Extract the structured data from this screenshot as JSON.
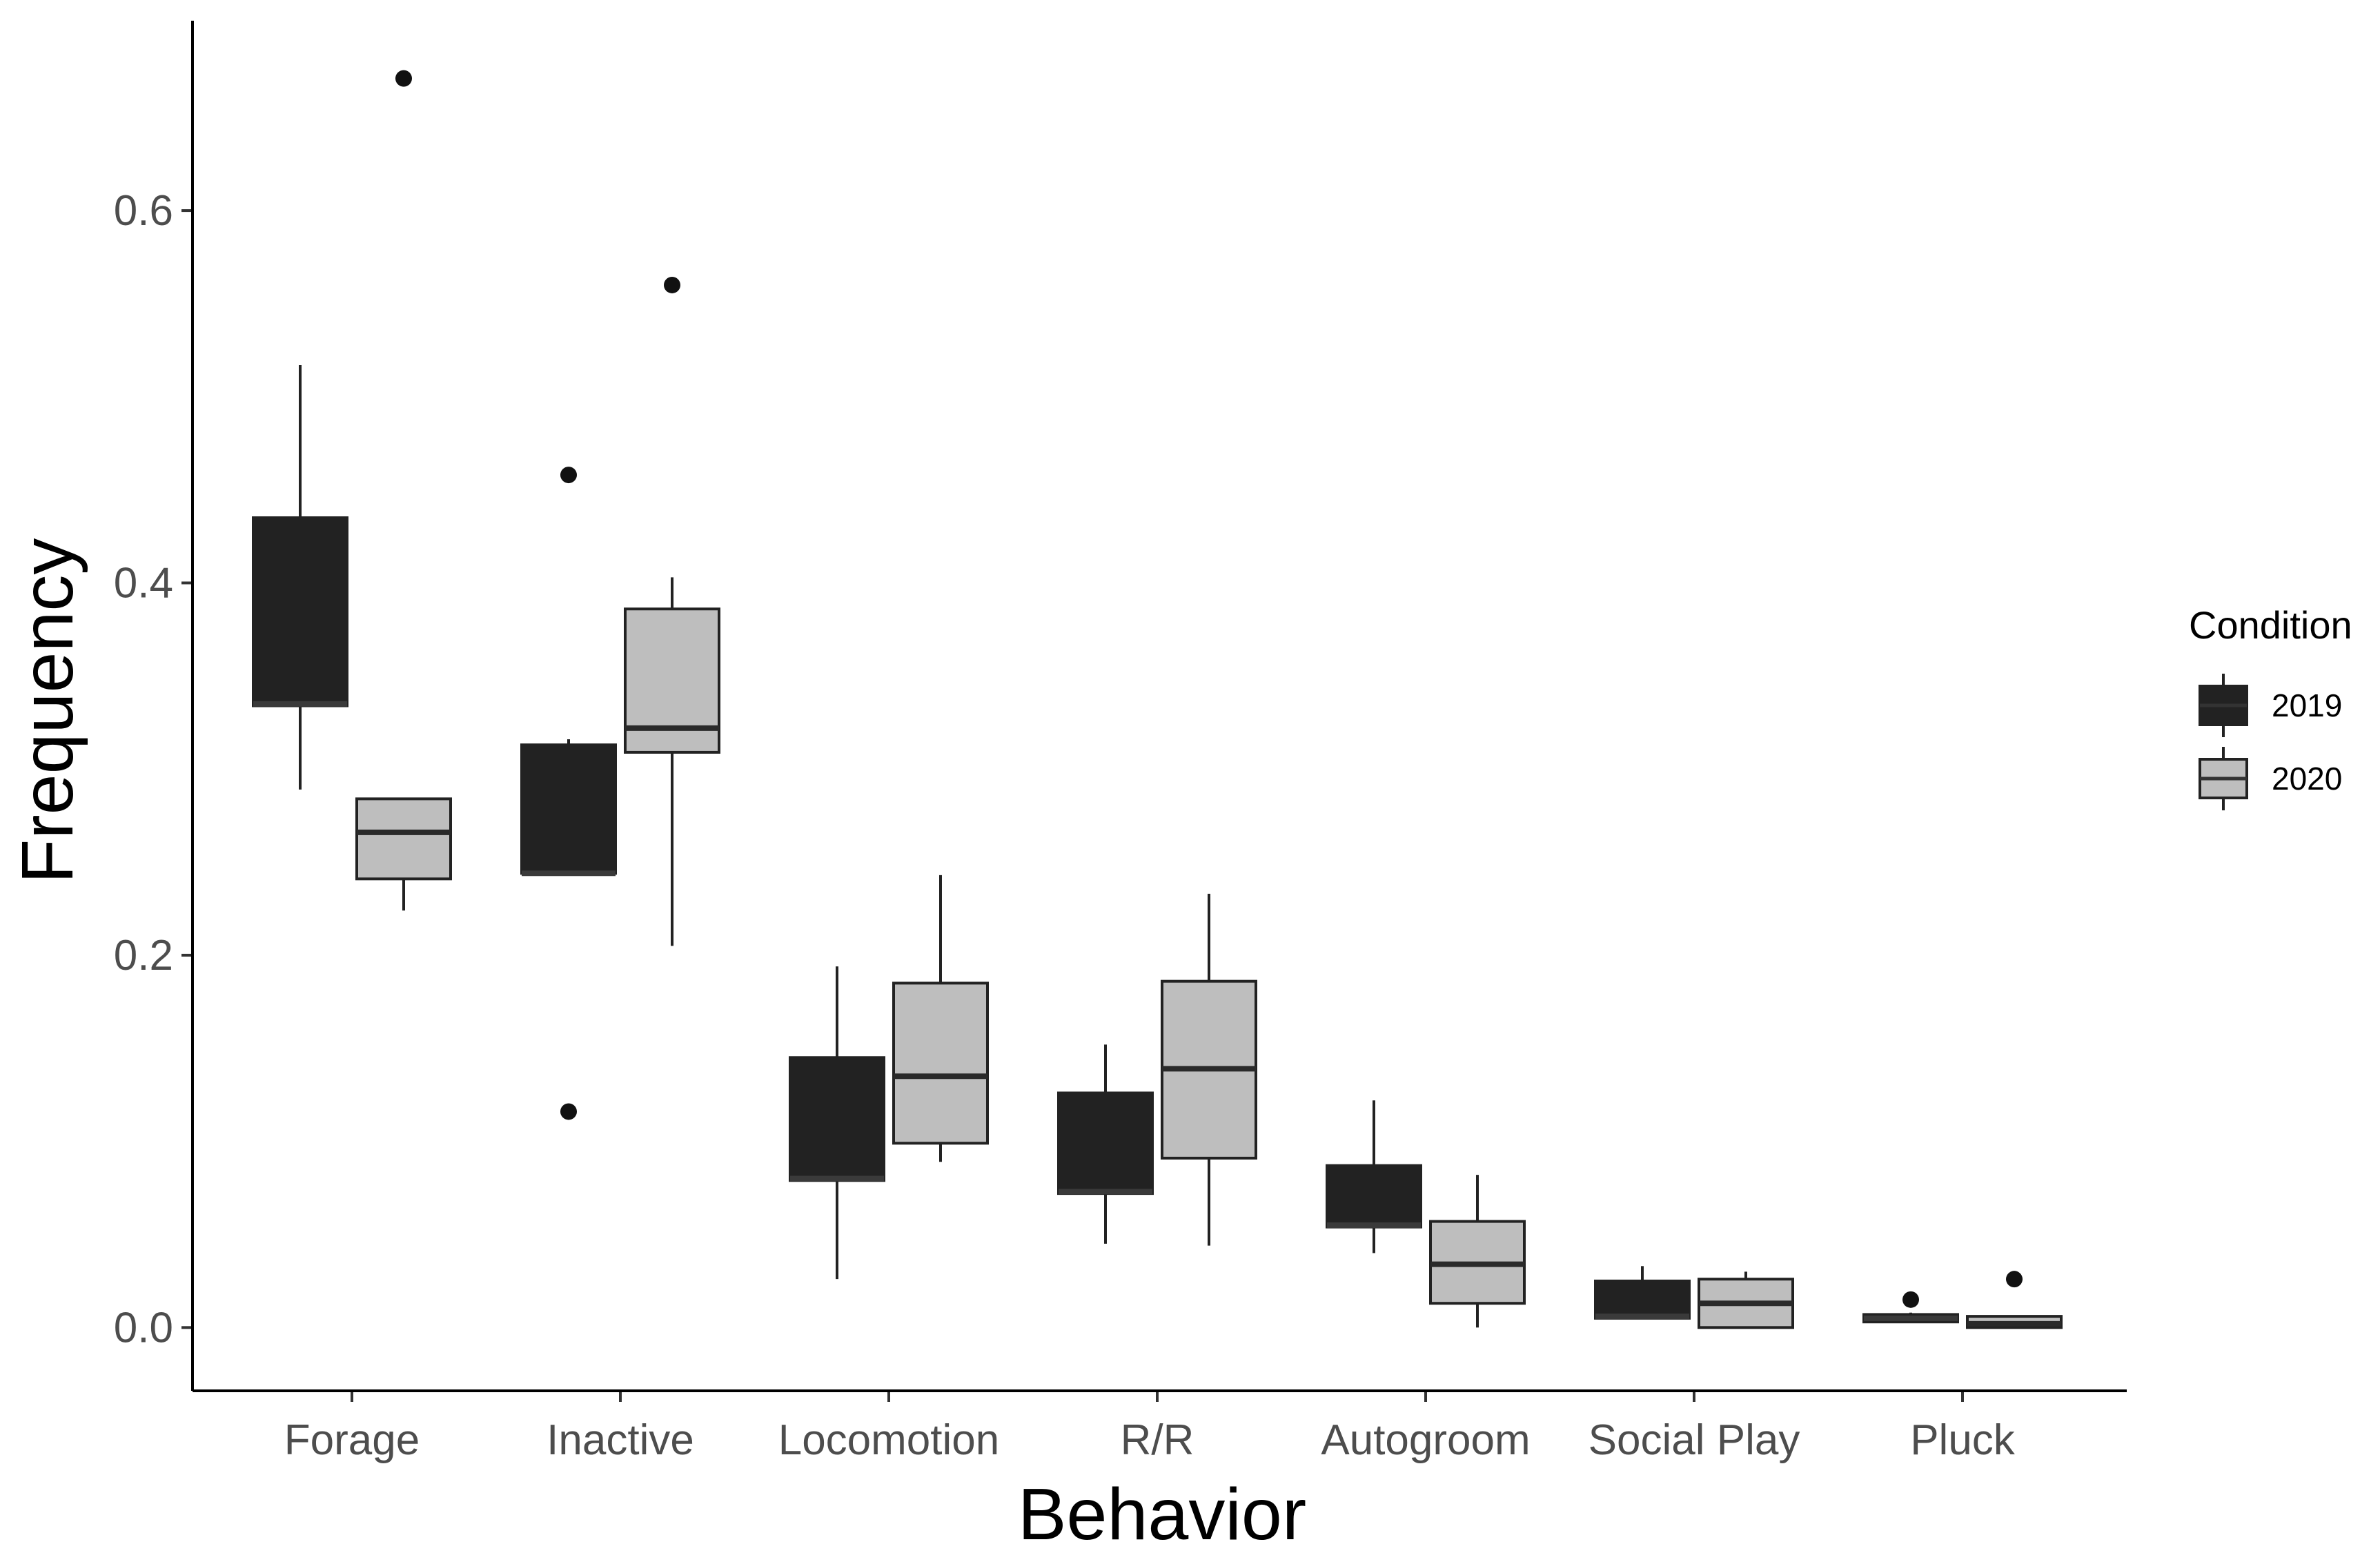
{
  "chart_data": {
    "type": "boxplot",
    "title": "",
    "xlabel": "Behavior",
    "ylabel": "Frequency",
    "ylim": [
      -0.034,
      0.702
    ],
    "yticks": [
      0.0,
      0.2,
      0.4,
      0.6
    ],
    "ytick_labels": [
      "0.0",
      "0.2",
      "0.4",
      "0.6"
    ],
    "categories": [
      "Forage",
      "Inactive",
      "Locomotion",
      "R/R",
      "Autogroom",
      "Social Play",
      "Pluck"
    ],
    "legend": {
      "title": "Condition",
      "position": "right",
      "entries": [
        {
          "label": "2019",
          "color": "#222222"
        },
        {
          "label": "2020",
          "color": "#bebebe"
        }
      ]
    },
    "series": [
      {
        "name": "2019",
        "color": "#222222",
        "boxes": [
          {
            "category": "Forage",
            "whisker_low": 0.289,
            "q1": 0.334,
            "median": 0.335,
            "q3": 0.435,
            "whisker_high": 0.517,
            "outliers": []
          },
          {
            "category": "Inactive",
            "whisker_low": 0.244,
            "q1": 0.244,
            "median": 0.244,
            "q3": 0.313,
            "whisker_high": 0.316,
            "outliers": [
              0.458,
              0.116
            ]
          },
          {
            "category": "Locomotion",
            "whisker_low": 0.026,
            "q1": 0.079,
            "median": 0.08,
            "q3": 0.145,
            "whisker_high": 0.194,
            "outliers": []
          },
          {
            "category": "R/R",
            "whisker_low": 0.045,
            "q1": 0.072,
            "median": 0.073,
            "q3": 0.126,
            "whisker_high": 0.152,
            "outliers": []
          },
          {
            "category": "Autogroom",
            "whisker_low": 0.04,
            "q1": 0.054,
            "median": 0.055,
            "q3": 0.087,
            "whisker_high": 0.122,
            "outliers": []
          },
          {
            "category": "Social Play",
            "whisker_low": 0.005,
            "q1": 0.005,
            "median": 0.006,
            "q3": 0.025,
            "whisker_high": 0.033,
            "outliers": []
          },
          {
            "category": "Pluck",
            "whisker_low": 0.003,
            "q1": 0.003,
            "median": 0.005,
            "q3": 0.007,
            "whisker_high": 0.008,
            "outliers": [
              0.015
            ]
          }
        ]
      },
      {
        "name": "2020",
        "color": "#bebebe",
        "boxes": [
          {
            "category": "Forage",
            "whisker_low": 0.224,
            "q1": 0.241,
            "median": 0.266,
            "q3": 0.284,
            "whisker_high": 0.284,
            "outliers": [
              0.671
            ]
          },
          {
            "category": "Inactive",
            "whisker_low": 0.205,
            "q1": 0.309,
            "median": 0.322,
            "q3": 0.386,
            "whisker_high": 0.403,
            "outliers": [
              0.56
            ]
          },
          {
            "category": "Locomotion",
            "whisker_low": 0.089,
            "q1": 0.099,
            "median": 0.135,
            "q3": 0.185,
            "whisker_high": 0.243,
            "outliers": []
          },
          {
            "category": "R/R",
            "whisker_low": 0.044,
            "q1": 0.091,
            "median": 0.139,
            "q3": 0.186,
            "whisker_high": 0.233,
            "outliers": []
          },
          {
            "category": "Autogroom",
            "whisker_low": 0.0,
            "q1": 0.013,
            "median": 0.034,
            "q3": 0.057,
            "whisker_high": 0.082,
            "outliers": []
          },
          {
            "category": "Social Play",
            "whisker_low": 0.0,
            "q1": 0.0,
            "median": 0.013,
            "q3": 0.026,
            "whisker_high": 0.03,
            "outliers": []
          },
          {
            "category": "Pluck",
            "whisker_low": 0.0,
            "q1": 0.0,
            "median": 0.002,
            "q3": 0.006,
            "whisker_high": 0.006,
            "outliers": [
              0.026
            ]
          }
        ]
      }
    ]
  }
}
